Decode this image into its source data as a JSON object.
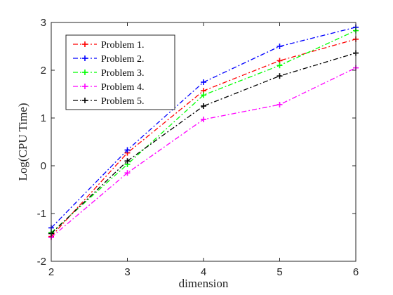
{
  "chart_data": {
    "type": "line",
    "xlabel": "dimension",
    "ylabel": "Log(CPU Time)",
    "xlim": [
      2,
      6
    ],
    "ylim": [
      -2,
      3
    ],
    "xticks": [
      "2",
      "3",
      "4",
      "5",
      "6"
    ],
    "yticks": [
      "-2",
      "-1",
      "0",
      "1",
      "2",
      "3"
    ],
    "grid": false,
    "legend_position": "top-left",
    "x": [
      2,
      3,
      4,
      5,
      6
    ],
    "series": [
      {
        "name": "Problem 1.",
        "color": "#ff0000",
        "values": [
          -1.48,
          0.27,
          1.57,
          2.2,
          2.65
        ]
      },
      {
        "name": "Problem 2.",
        "color": "#0000ff",
        "values": [
          -1.3,
          0.33,
          1.75,
          2.5,
          2.9
        ]
      },
      {
        "name": "Problem 3.",
        "color": "#00ff00",
        "values": [
          -1.4,
          0.03,
          1.48,
          2.1,
          2.83
        ]
      },
      {
        "name": "Problem 4.",
        "color": "#ff00ff",
        "values": [
          -1.5,
          -0.15,
          0.97,
          1.28,
          2.05
        ]
      },
      {
        "name": "Problem 5.",
        "color": "#000000",
        "values": [
          -1.42,
          0.1,
          1.25,
          1.88,
          2.36
        ]
      }
    ]
  }
}
